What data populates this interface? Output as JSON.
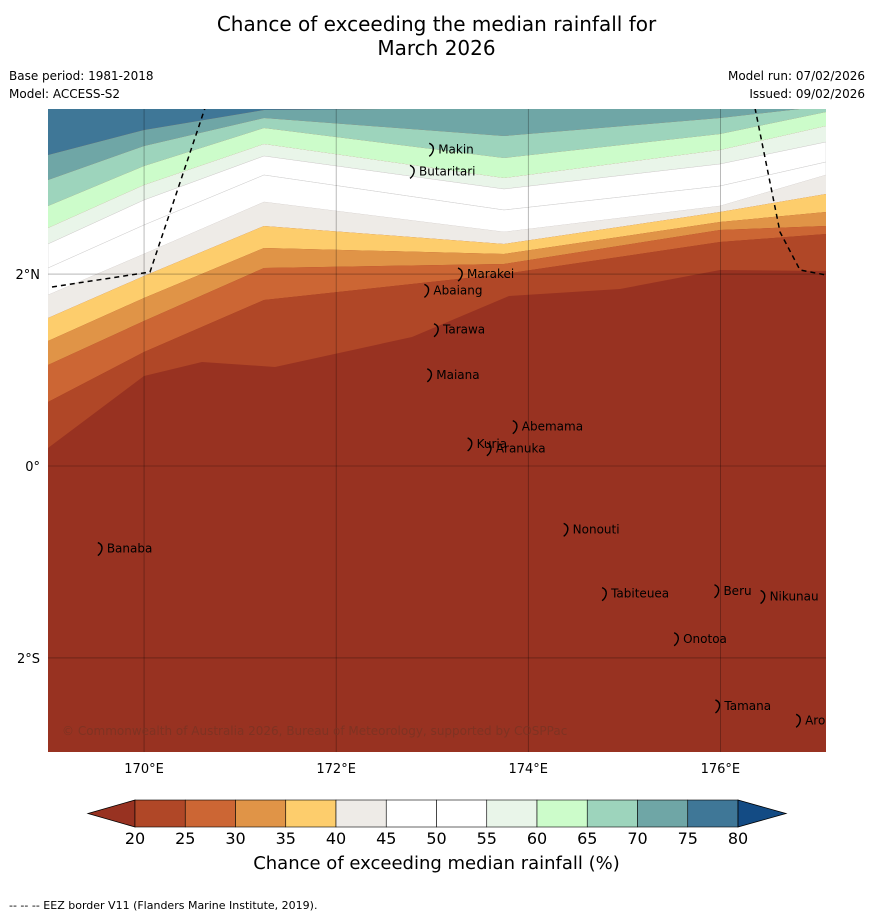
{
  "title_line1": "Chance of exceeding the median rainfall for",
  "title_line2": "March 2026",
  "meta_left": [
    "Base period: 1981-2018",
    "Model: ACCESS-S2"
  ],
  "meta_right": [
    "Model run: 07/02/2026",
    "Issued: 09/02/2026"
  ],
  "map": {
    "lon_range": [
      169,
      177.1
    ],
    "lat_range": [
      -2.98,
      3.72
    ],
    "lon_ticks": [
      {
        "value": 170,
        "label": "170°E"
      },
      {
        "value": 172,
        "label": "172°E"
      },
      {
        "value": 174,
        "label": "174°E"
      },
      {
        "value": 176,
        "label": "176°E"
      }
    ],
    "lat_ticks": [
      {
        "value": 2,
        "label": "2°N"
      },
      {
        "value": 0,
        "label": "0°"
      },
      {
        "value": -2,
        "label": "2°S"
      }
    ],
    "copyright": "© Commonwealth of Australia 2026, Bureau of Meteorology, supported by COSPPac",
    "islands": [
      {
        "name": "Makin",
        "lon": 173.0,
        "lat": 3.3
      },
      {
        "name": "Butaritari",
        "lon": 172.8,
        "lat": 3.07
      },
      {
        "name": "Marakei",
        "lon": 173.3,
        "lat": 2.0
      },
      {
        "name": "Abaiang",
        "lon": 172.95,
        "lat": 1.83
      },
      {
        "name": "Tarawa",
        "lon": 173.05,
        "lat": 1.42
      },
      {
        "name": "Maiana",
        "lon": 172.98,
        "lat": 0.95
      },
      {
        "name": "Abemama",
        "lon": 173.87,
        "lat": 0.41
      },
      {
        "name": "Kuria",
        "lon": 173.4,
        "lat": 0.23
      },
      {
        "name": "Aranuka",
        "lon": 173.6,
        "lat": 0.18
      },
      {
        "name": "Nonouti",
        "lon": 174.4,
        "lat": -0.66
      },
      {
        "name": "Banaba",
        "lon": 169.55,
        "lat": -0.86
      },
      {
        "name": "Tabiteuea",
        "lon": 174.8,
        "lat": -1.33
      },
      {
        "name": "Beru",
        "lon": 175.97,
        "lat": -1.3
      },
      {
        "name": "Nikunau",
        "lon": 176.45,
        "lat": -1.36
      },
      {
        "name": "Onotoa",
        "lon": 175.55,
        "lat": -1.8
      },
      {
        "name": "Tamana",
        "lon": 175.98,
        "lat": -2.5
      },
      {
        "name": "Arorae",
        "lon": 176.82,
        "lat": -2.65
      }
    ]
  },
  "colorbar": {
    "levels": [
      20,
      25,
      30,
      35,
      40,
      45,
      50,
      55,
      60,
      65,
      70,
      75,
      80
    ],
    "colors": [
      "#983221",
      "#b04727",
      "#cc6634",
      "#e09447",
      "#fdcd6c",
      "#eeebe7",
      "#ffffff",
      "#ffffff",
      "#e9f5e9",
      "#ccfcca",
      "#9dd4bc",
      "#6fa6a6",
      "#3f7797",
      "#134b84"
    ],
    "label": "Chance of exceeding median rainfall (%)"
  },
  "footnote": "--  --  -- EEZ border V11 (Flanders Marine Institute, 2019)."
}
